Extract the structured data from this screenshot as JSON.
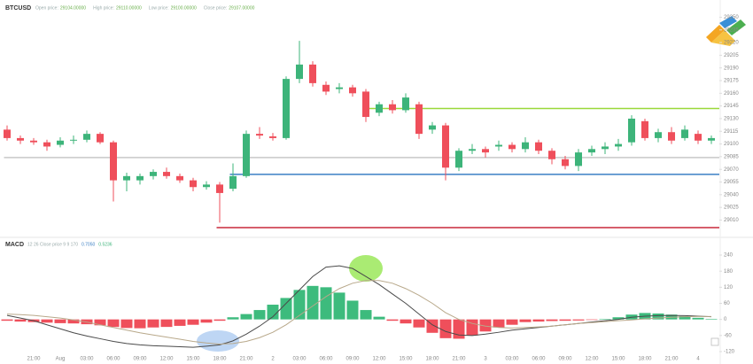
{
  "chart_data": [
    {
      "type": "candlestick",
      "title": "BTCUSD",
      "info": [
        {
          "label": "Open price:",
          "value": "29104.00000"
        },
        {
          "label": "High price:",
          "value": "29110.00000"
        },
        {
          "label": "Low price:",
          "value": "29100.00000"
        },
        {
          "label": "Close price:",
          "value": "29107.00000"
        }
      ],
      "categories": [
        null,
        null,
        "21:00",
        null,
        "Aug",
        null,
        "03:00",
        null,
        "06:00",
        null,
        "09:00",
        null,
        "12:00",
        null,
        "15:00",
        null,
        "18:00",
        null,
        "21:00",
        null,
        "2",
        null,
        "03:00",
        null,
        "06:00",
        null,
        "09:00",
        null,
        "12:00",
        null,
        "15:00",
        null,
        "18:00",
        null,
        "21:00",
        null,
        "3",
        null,
        "03:00",
        null,
        "06:00",
        null,
        "09:00",
        null,
        "12:00",
        null,
        "15:00",
        null,
        "18:00",
        null,
        "21:00",
        null,
        "4",
        null
      ],
      "open": [
        29117,
        29107,
        29104,
        29102,
        29099,
        29104,
        29105,
        29112,
        29102,
        29057,
        29057,
        29062,
        29067,
        29062,
        29057,
        29049,
        29052,
        29047,
        29062,
        29112,
        29109,
        29107,
        29177,
        29194,
        29170,
        29165,
        29167,
        29162,
        29137,
        29147,
        29140,
        29147,
        29117,
        29122,
        29072,
        29092,
        29094,
        29097,
        29099,
        29094,
        29102,
        29092,
        29082,
        29074,
        29090,
        29094,
        29097,
        29102,
        29127,
        29107,
        29114,
        29107,
        29112,
        29104
      ],
      "close": [
        29107,
        29104,
        29102,
        29097,
        29104,
        29105,
        29112,
        29102,
        29057,
        29062,
        29062,
        29067,
        29062,
        29057,
        29049,
        29052,
        29042,
        29062,
        29112,
        29110,
        29107,
        29177,
        29194,
        29172,
        29162,
        29167,
        29160,
        29132,
        29147,
        29140,
        29155,
        29112,
        29122,
        29072,
        29092,
        29094,
        29090,
        29099,
        29094,
        29102,
        29092,
        29082,
        29074,
        29090,
        29094,
        29097,
        29100,
        29130,
        29107,
        29114,
        29104,
        29117,
        29104,
        29107
      ],
      "high": [
        29122,
        29110,
        29107,
        29105,
        29108,
        29110,
        29116,
        29114,
        29104,
        29066,
        29065,
        29070,
        29072,
        29065,
        29060,
        29056,
        29055,
        29077,
        29116,
        29120,
        29113,
        29180,
        29222,
        29198,
        29174,
        29172,
        29170,
        29165,
        29150,
        29152,
        29160,
        29150,
        29126,
        29125,
        29095,
        29100,
        29097,
        29104,
        29102,
        29108,
        29105,
        29095,
        29086,
        29094,
        29098,
        29102,
        29106,
        29134,
        29130,
        29118,
        29120,
        29122,
        29116,
        29110
      ],
      "low": [
        29104,
        29100,
        29099,
        29092,
        29096,
        29100,
        29102,
        29100,
        29032,
        29044,
        29052,
        29058,
        29059,
        29054,
        29044,
        29046,
        29007,
        29044,
        29060,
        29106,
        29104,
        29105,
        29172,
        29168,
        29158,
        29160,
        29156,
        29126,
        29133,
        29136,
        29137,
        29106,
        29112,
        29057,
        29068,
        29088,
        29084,
        29092,
        29090,
        29090,
        29088,
        29076,
        29070,
        29068,
        29086,
        29088,
        29092,
        29098,
        29104,
        29102,
        29100,
        29104,
        29100,
        29100
      ],
      "up_color": "#3db47a",
      "down_color": "#ef4f5b",
      "levels": [
        {
          "value": 29084,
          "color": "#c8c8c8",
          "start": 0
        },
        {
          "value": 29142,
          "color": "#9ad83a",
          "start": 27
        },
        {
          "value": 29064,
          "color": "#3b7fc4",
          "start": 17
        },
        {
          "value": 29001,
          "color": "#c8283c",
          "start": 16
        }
      ],
      "ylim": [
        29000,
        29262
      ],
      "yticks": [
        29010,
        29025,
        29040,
        29055,
        29070,
        29085,
        29100,
        29115,
        29130,
        29145,
        29160,
        29175,
        29190,
        29205,
        29220,
        29235,
        29250
      ]
    },
    {
      "type": "macd",
      "title": "MACD",
      "params": "12 26 Close price 9 9 170",
      "readouts": [
        {
          "value": "0.7050",
          "color": "#3b7fc4"
        },
        {
          "value": "0.5236",
          "color": "#3db47a"
        }
      ],
      "histogram": {
        "values": [
          -5,
          -8,
          -10,
          -12,
          -14,
          -15,
          -18,
          -22,
          -28,
          -32,
          -33,
          -30,
          -28,
          -24,
          -20,
          -12,
          -5,
          8,
          20,
          35,
          55,
          80,
          110,
          125,
          120,
          100,
          70,
          35,
          10,
          -5,
          -15,
          -30,
          -50,
          -70,
          -72,
          -60,
          -45,
          -30,
          -20,
          -10,
          -8,
          -6,
          -5,
          -4,
          -2,
          2,
          8,
          18,
          24,
          22,
          18,
          12,
          6,
          2
        ],
        "up_color": "#3dbb7d",
        "down_color": "#ef4f5b"
      },
      "series": [
        {
          "color": "#4a4a4a",
          "values": [
            15,
            5,
            -5,
            -20,
            -35,
            -50,
            -62,
            -72,
            -82,
            -90,
            -95,
            -98,
            -100,
            -102,
            -104,
            -100,
            -95,
            -80,
            -55,
            -25,
            10,
            60,
            110,
            160,
            195,
            200,
            190,
            160,
            130,
            95,
            60,
            20,
            -20,
            -45,
            -58,
            -60,
            -55,
            -48,
            -40,
            -35,
            -30,
            -25,
            -20,
            -15,
            -10,
            -5,
            0,
            8,
            12,
            14,
            15,
            14,
            12,
            10
          ]
        },
        {
          "color": "#b8a88a",
          "values": [
            20,
            18,
            15,
            10,
            5,
            -2,
            -10,
            -20,
            -30,
            -40,
            -50,
            -58,
            -66,
            -74,
            -82,
            -88,
            -92,
            -90,
            -82,
            -68,
            -48,
            -20,
            15,
            50,
            85,
            115,
            135,
            145,
            145,
            135,
            115,
            90,
            60,
            25,
            0,
            -15,
            -25,
            -30,
            -32,
            -30,
            -28,
            -25,
            -20,
            -15,
            -12,
            -8,
            -5,
            -2,
            2,
            5,
            8,
            10,
            11,
            11
          ]
        }
      ],
      "ylim": [
        -130,
        250
      ],
      "yticks": [
        240,
        180,
        120,
        60,
        0,
        -60,
        -120
      ]
    }
  ]
}
